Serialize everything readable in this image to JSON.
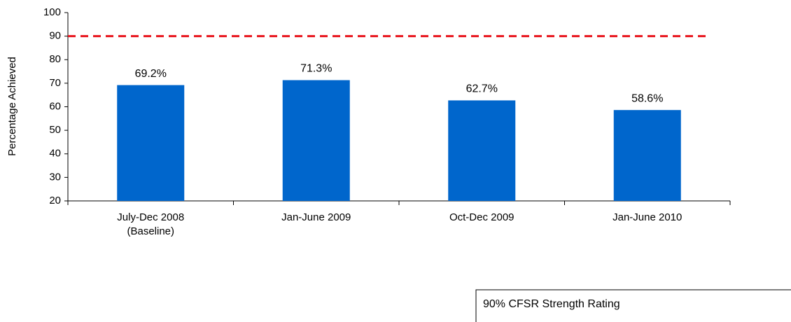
{
  "chart_data": {
    "type": "bar",
    "y_label": "Percentage Achieved",
    "categories": [
      "July-Dec 2008\n(Baseline)",
      "Jan-June 2009",
      "Oct-Dec 2009",
      "Jan-June 2010"
    ],
    "values": [
      69.2,
      71.3,
      62.7,
      58.6
    ],
    "value_labels": [
      "69.2%",
      "71.3%",
      "62.7%",
      "58.6%"
    ],
    "color": "#0066cc",
    "ylim": [
      20,
      100
    ],
    "yticks": [
      20,
      30,
      40,
      50,
      60,
      70,
      80,
      90,
      100
    ],
    "reference_line": {
      "value": 90,
      "color": "#e8141c",
      "label": "90% CFSR Strength Rating"
    }
  }
}
